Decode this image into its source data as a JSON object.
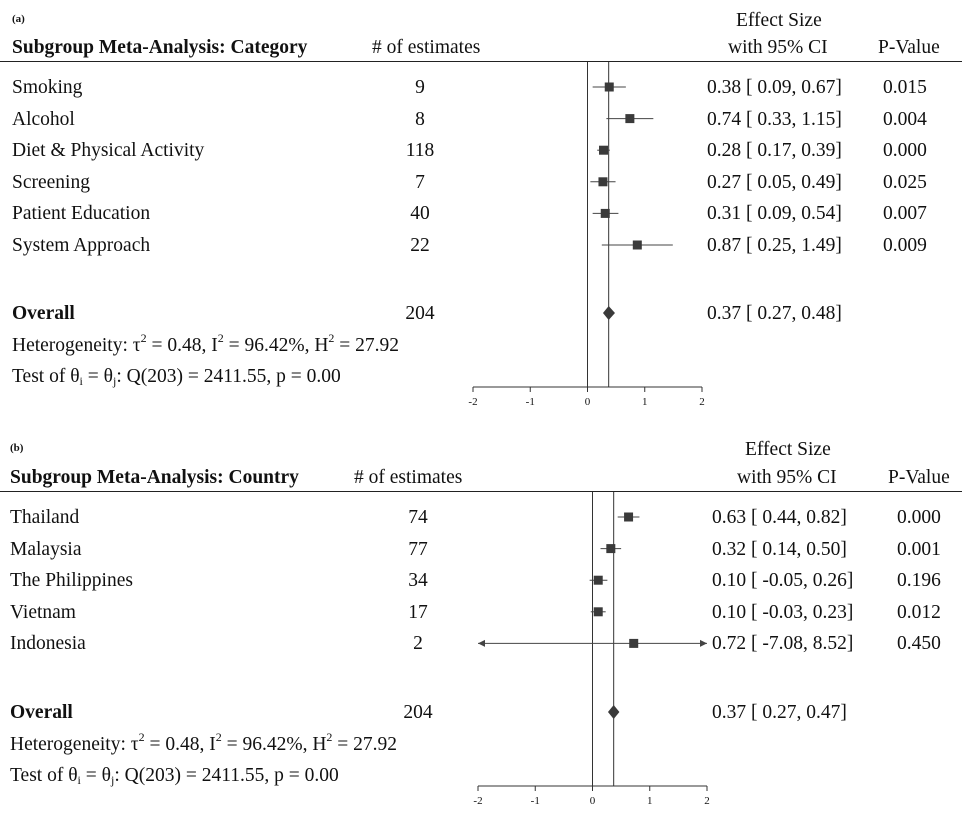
{
  "chart_data": [
    {
      "type": "forest",
      "panel_label": "(a)",
      "title": "Subgroup Meta-Analysis: Category",
      "count_header": "# of estimates",
      "effect_header_line1": "Effect Size",
      "effect_header_line2": "with 95% CI",
      "pvalue_header": "P-Value",
      "xlim": [
        -2,
        2
      ],
      "x_ticks": [
        "-2",
        "-1",
        "0",
        "1",
        "2"
      ],
      "rows": [
        {
          "label": "Smoking",
          "n": "9",
          "es": 0.38,
          "lo": 0.09,
          "hi": 0.67,
          "ci_text": "0.38 [ 0.09, 0.67]",
          "p": "0.015"
        },
        {
          "label": "Alcohol",
          "n": "8",
          "es": 0.74,
          "lo": 0.33,
          "hi": 1.15,
          "ci_text": "0.74 [ 0.33, 1.15]",
          "p": "0.004"
        },
        {
          "label": "Diet & Physical Activity",
          "n": "118",
          "es": 0.28,
          "lo": 0.17,
          "hi": 0.39,
          "ci_text": "0.28 [ 0.17, 0.39]",
          "p": "0.000"
        },
        {
          "label": "Screening",
          "n": "7",
          "es": 0.27,
          "lo": 0.05,
          "hi": 0.49,
          "ci_text": "0.27 [ 0.05, 0.49]",
          "p": "0.025"
        },
        {
          "label": "Patient Education",
          "n": "40",
          "es": 0.31,
          "lo": 0.09,
          "hi": 0.54,
          "ci_text": "0.31 [ 0.09, 0.54]",
          "p": "0.007"
        },
        {
          "label": "System Approach",
          "n": "22",
          "es": 0.87,
          "lo": 0.25,
          "hi": 1.49,
          "ci_text": "0.87 [ 0.25, 1.49]",
          "p": "0.009"
        }
      ],
      "overall": {
        "label": "Overall",
        "n": "204",
        "es": 0.37,
        "lo": 0.27,
        "hi": 0.48,
        "ci_text": "0.37 [ 0.27, 0.48]"
      },
      "heterogeneity": {
        "prefix": "Heterogeneity: τ",
        "tau_val": " = 0.48, I",
        "i2_val": " = 96.42%, H",
        "h2_val": " = 27.92"
      },
      "test": {
        "prefix": "Test of θ",
        "mid": " = θ",
        "suffix": ": Q(203) = 2411.55, p = 0.00"
      }
    },
    {
      "type": "forest",
      "panel_label": "(b)",
      "title": "Subgroup Meta-Analysis: Country",
      "count_header": "# of estimates",
      "effect_header_line1": "Effect Size",
      "effect_header_line2": "with 95% CI",
      "pvalue_header": "P-Value",
      "xlim": [
        -2,
        2
      ],
      "x_ticks": [
        "-2",
        "-1",
        "0",
        "1",
        "2"
      ],
      "rows": [
        {
          "label": "Thailand",
          "n": "74",
          "es": 0.63,
          "lo": 0.44,
          "hi": 0.82,
          "ci_text": "0.63 [  0.44, 0.82]",
          "p": "0.000"
        },
        {
          "label": "Malaysia",
          "n": "77",
          "es": 0.32,
          "lo": 0.14,
          "hi": 0.5,
          "ci_text": "0.32 [  0.14, 0.50]",
          "p": "0.001"
        },
        {
          "label": "The Philippines",
          "n": "34",
          "es": 0.1,
          "lo": -0.05,
          "hi": 0.26,
          "ci_text": "0.10 [ -0.05, 0.26]",
          "p": "0.196"
        },
        {
          "label": "Vietnam",
          "n": "17",
          "es": 0.1,
          "lo": -0.03,
          "hi": 0.23,
          "ci_text": "0.10 [ -0.03, 0.23]",
          "p": "0.012"
        },
        {
          "label": "Indonesia",
          "n": "2",
          "es": 0.72,
          "lo": -7.08,
          "hi": 8.52,
          "ci_text": "0.72 [ -7.08, 8.52]",
          "p": "0.450"
        }
      ],
      "overall": {
        "label": "Overall",
        "n": "204",
        "es": 0.37,
        "lo": 0.27,
        "hi": 0.47,
        "ci_text": "0.37 [  0.27, 0.47]"
      },
      "heterogeneity": {
        "prefix": "Heterogeneity: τ",
        "tau_val": " = 0.48, I",
        "i2_val": " = 96.42%, H",
        "h2_val": " = 27.92"
      },
      "test": {
        "prefix": "Test of θ",
        "mid": " = θ",
        "suffix": ": Q(203) = 2411.55, p = 0.00"
      }
    }
  ],
  "sup2": "2",
  "sub_i": "i",
  "sub_j": "j",
  "colors": {
    "marker": "#3a3a3a",
    "line": "#444444",
    "text": "#111111"
  }
}
